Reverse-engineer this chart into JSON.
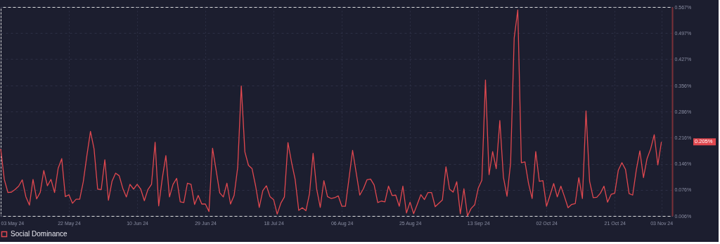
{
  "chart_data": {
    "type": "line",
    "legend": "bottom",
    "grid": true,
    "x": [
      "2024-05-03",
      "2024-05-04",
      "2024-05-05",
      "2024-05-06",
      "2024-05-07",
      "2024-05-08",
      "2024-05-09",
      "2024-05-10",
      "2024-05-11",
      "2024-05-12",
      "2024-05-13",
      "2024-05-14",
      "2024-05-15",
      "2024-05-16",
      "2024-05-17",
      "2024-05-18",
      "2024-05-19",
      "2024-05-20",
      "2024-05-21",
      "2024-05-22",
      "2024-05-23",
      "2024-05-24",
      "2024-05-25",
      "2024-05-26",
      "2024-05-27",
      "2024-05-28",
      "2024-05-29",
      "2024-05-30",
      "2024-05-31",
      "2024-06-01",
      "2024-06-02",
      "2024-06-03",
      "2024-06-04",
      "2024-06-05",
      "2024-06-06",
      "2024-06-07",
      "2024-06-08",
      "2024-06-09",
      "2024-06-10",
      "2024-06-11",
      "2024-06-12",
      "2024-06-13",
      "2024-06-14",
      "2024-06-15",
      "2024-06-16",
      "2024-06-17",
      "2024-06-18",
      "2024-06-19",
      "2024-06-20",
      "2024-06-21",
      "2024-06-22",
      "2024-06-23",
      "2024-06-24",
      "2024-06-25",
      "2024-06-26",
      "2024-06-27",
      "2024-06-28",
      "2024-06-29",
      "2024-06-30",
      "2024-07-01",
      "2024-07-02",
      "2024-07-03",
      "2024-07-04",
      "2024-07-05",
      "2024-07-06",
      "2024-07-07",
      "2024-07-08",
      "2024-07-09",
      "2024-07-10",
      "2024-07-11",
      "2024-07-12",
      "2024-07-13",
      "2024-07-14",
      "2024-07-15",
      "2024-07-16",
      "2024-07-17",
      "2024-07-18",
      "2024-07-19",
      "2024-07-20",
      "2024-07-21",
      "2024-07-22",
      "2024-07-23",
      "2024-07-24",
      "2024-07-25",
      "2024-07-26",
      "2024-07-27",
      "2024-07-28",
      "2024-07-29",
      "2024-07-30",
      "2024-07-31",
      "2024-08-01",
      "2024-08-02",
      "2024-08-03",
      "2024-08-04",
      "2024-08-05",
      "2024-08-06",
      "2024-08-07",
      "2024-08-08",
      "2024-08-09",
      "2024-08-10",
      "2024-08-11",
      "2024-08-12",
      "2024-08-13",
      "2024-08-14",
      "2024-08-15",
      "2024-08-16",
      "2024-08-17",
      "2024-08-18",
      "2024-08-19",
      "2024-08-20",
      "2024-08-21",
      "2024-08-22",
      "2024-08-23",
      "2024-08-24",
      "2024-08-25",
      "2024-08-26",
      "2024-08-27",
      "2024-08-28",
      "2024-08-29",
      "2024-08-30",
      "2024-08-31",
      "2024-09-01",
      "2024-09-02",
      "2024-09-03",
      "2024-09-04",
      "2024-09-05",
      "2024-09-06",
      "2024-09-07",
      "2024-09-08",
      "2024-09-09",
      "2024-09-10",
      "2024-09-11",
      "2024-09-12",
      "2024-09-13",
      "2024-09-14",
      "2024-09-15",
      "2024-09-16",
      "2024-09-17",
      "2024-09-18",
      "2024-09-19",
      "2024-09-20",
      "2024-09-21",
      "2024-09-22",
      "2024-09-23",
      "2024-09-24",
      "2024-09-25",
      "2024-09-26",
      "2024-09-27",
      "2024-09-28",
      "2024-09-29",
      "2024-09-30",
      "2024-10-01",
      "2024-10-02",
      "2024-10-03",
      "2024-10-04",
      "2024-10-05",
      "2024-10-06",
      "2024-10-07",
      "2024-10-08",
      "2024-10-09",
      "2024-10-10",
      "2024-10-11",
      "2024-10-12",
      "2024-10-13",
      "2024-10-14",
      "2024-10-15",
      "2024-10-16",
      "2024-10-17",
      "2024-10-18",
      "2024-10-19",
      "2024-10-20",
      "2024-10-21",
      "2024-10-22",
      "2024-10-23",
      "2024-10-24",
      "2024-10-25",
      "2024-10-26",
      "2024-10-27",
      "2024-10-28",
      "2024-10-29",
      "2024-10-30",
      "2024-10-31",
      "2024-11-01",
      "2024-11-02",
      "2024-11-03"
    ],
    "series": [
      {
        "name": "Social Dominance",
        "color": "#e0484f",
        "values": [
          0.186,
          0.104,
          0.069,
          0.07,
          0.077,
          0.086,
          0.103,
          0.058,
          0.035,
          0.104,
          0.052,
          0.069,
          0.128,
          0.087,
          0.104,
          0.069,
          0.134,
          0.16,
          0.058,
          0.063,
          0.04,
          0.051,
          0.051,
          0.098,
          0.168,
          0.233,
          0.186,
          0.078,
          0.077,
          0.157,
          0.048,
          0.099,
          0.121,
          0.114,
          0.08,
          0.057,
          0.091,
          0.078,
          0.091,
          0.078,
          0.047,
          0.077,
          0.091,
          0.204,
          0.033,
          0.107,
          0.168,
          0.057,
          0.091,
          0.107,
          0.044,
          0.042,
          0.094,
          0.091,
          0.037,
          0.061,
          0.038,
          0.038,
          0.018,
          0.188,
          0.128,
          0.068,
          0.057,
          0.094,
          0.038,
          0.061,
          0.136,
          0.355,
          0.178,
          0.142,
          0.133,
          0.086,
          0.029,
          0.074,
          0.087,
          0.058,
          0.05,
          0.011,
          0.04,
          0.057,
          0.203,
          0.15,
          0.104,
          0.021,
          0.028,
          0.02,
          0.066,
          0.174,
          0.078,
          0.029,
          0.101,
          0.058,
          0.053,
          0.055,
          0.06,
          0.032,
          0.032,
          0.107,
          0.182,
          0.122,
          0.062,
          0.079,
          0.103,
          0.105,
          0.089,
          0.042,
          0.046,
          0.044,
          0.086,
          0.061,
          0.062,
          0.032,
          0.086,
          0.014,
          0.043,
          0.012,
          0.037,
          0.063,
          0.05,
          0.069,
          0.069,
          0.031,
          0.04,
          0.049,
          0.138,
          0.078,
          0.07,
          0.098,
          0.012,
          0.079,
          0.006,
          0.026,
          0.036,
          0.081,
          0.102,
          0.371,
          0.117,
          0.179,
          0.133,
          0.262,
          0.11,
          0.059,
          0.148,
          0.484,
          0.559,
          0.149,
          0.151,
          0.093,
          0.053,
          0.179,
          0.099,
          0.101,
          0.032,
          0.062,
          0.093,
          0.057,
          0.086,
          0.058,
          0.028,
          0.037,
          0.039,
          0.109,
          0.053,
          0.288,
          0.099,
          0.055,
          0.056,
          0.067,
          0.086,
          0.043,
          0.064,
          0.067,
          0.129,
          0.149,
          0.131,
          0.066,
          0.062,
          0.129,
          0.181,
          0.109,
          0.16,
          0.186,
          0.224,
          0.143,
          0.205
        ]
      }
    ],
    "xlim": [
      "2024-05-03",
      "2024-11-06"
    ],
    "xticks": [
      {
        "value": "2024-05-03",
        "label": "03 May 24"
      },
      {
        "value": "2024-05-22",
        "label": "22 May 24"
      },
      {
        "value": "2024-06-10",
        "label": "10 Jun 24"
      },
      {
        "value": "2024-06-29",
        "label": "29 Jun 24"
      },
      {
        "value": "2024-07-18",
        "label": "18 Jul 24"
      },
      {
        "value": "2024-08-06",
        "label": "06 Aug 24"
      },
      {
        "value": "2024-08-25",
        "label": "25 Aug 24"
      },
      {
        "value": "2024-09-13",
        "label": "13 Sep 24"
      },
      {
        "value": "2024-10-02",
        "label": "02 Oct 24"
      },
      {
        "value": "2024-10-21",
        "label": "21 Oct 24"
      },
      {
        "value": "2024-11-03",
        "label": "03 Nov 24"
      }
    ],
    "ylim": [
      0.006,
      0.567
    ],
    "yticks": [
      {
        "value": 0.006,
        "label": "0.006%"
      },
      {
        "value": 0.076,
        "label": "0.076%"
      },
      {
        "value": 0.146,
        "label": "0.146%"
      },
      {
        "value": 0.216,
        "label": "0.216%"
      },
      {
        "value": 0.286,
        "label": "0.286%"
      },
      {
        "value": 0.356,
        "label": "0.356%"
      },
      {
        "value": 0.427,
        "label": "0.427%"
      },
      {
        "value": 0.497,
        "label": "0.497%"
      },
      {
        "value": 0.567,
        "label": "0.567%"
      }
    ],
    "annotations": [
      "0.205%"
    ]
  }
}
